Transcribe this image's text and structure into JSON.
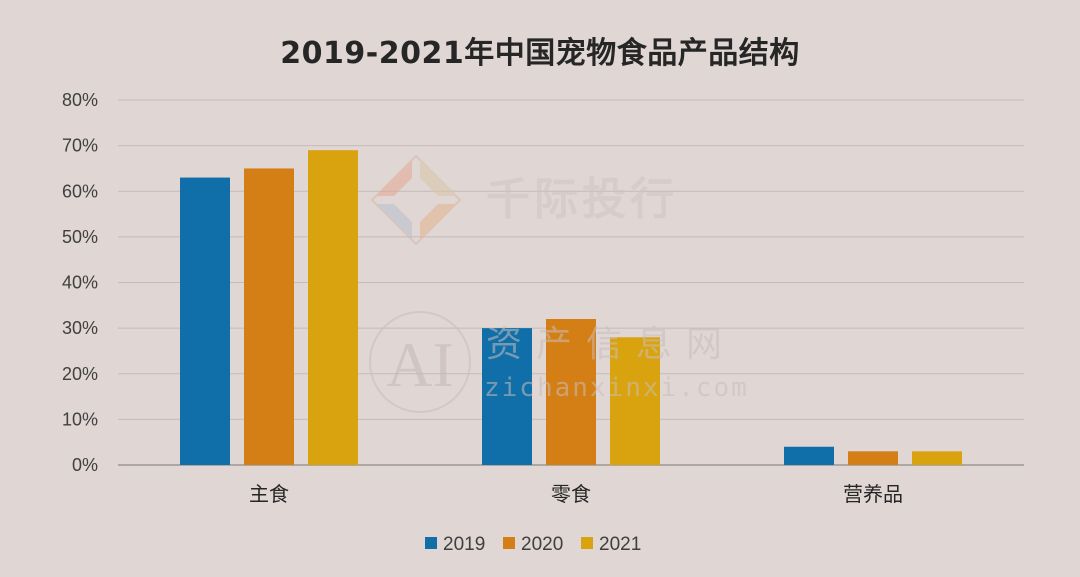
{
  "chart_data": {
    "type": "bar",
    "title": "2019-2021年中国宠物食品产品结构",
    "categories": [
      "主食",
      "零食",
      "营养品"
    ],
    "series": [
      {
        "name": "2019",
        "values": [
          63,
          30,
          4
        ],
        "color": "#106ea8"
      },
      {
        "name": "2020",
        "values": [
          65,
          32,
          3
        ],
        "color": "#d37f16"
      },
      {
        "name": "2021",
        "values": [
          69,
          28,
          3
        ],
        "color": "#d9a20f"
      }
    ],
    "ylim": [
      0,
      80
    ],
    "yticks": [
      0,
      10,
      20,
      30,
      40,
      50,
      60,
      70,
      80
    ],
    "ytick_labels": [
      "0%",
      "10%",
      "20%",
      "30%",
      "40%",
      "50%",
      "60%",
      "70%",
      "80%"
    ],
    "xlabel": "",
    "ylabel": "",
    "grid": true,
    "legend_position": "bottom"
  },
  "watermarks": {
    "brand_1": "千际投行",
    "brand_2_logo": "AI",
    "brand_2_name": "资产信息网",
    "brand_2_url": "zichanxinxi.com"
  },
  "colors": {
    "background": "#e0d6d3",
    "gridline": "#c4bbb8",
    "axis": "#9e9896"
  }
}
